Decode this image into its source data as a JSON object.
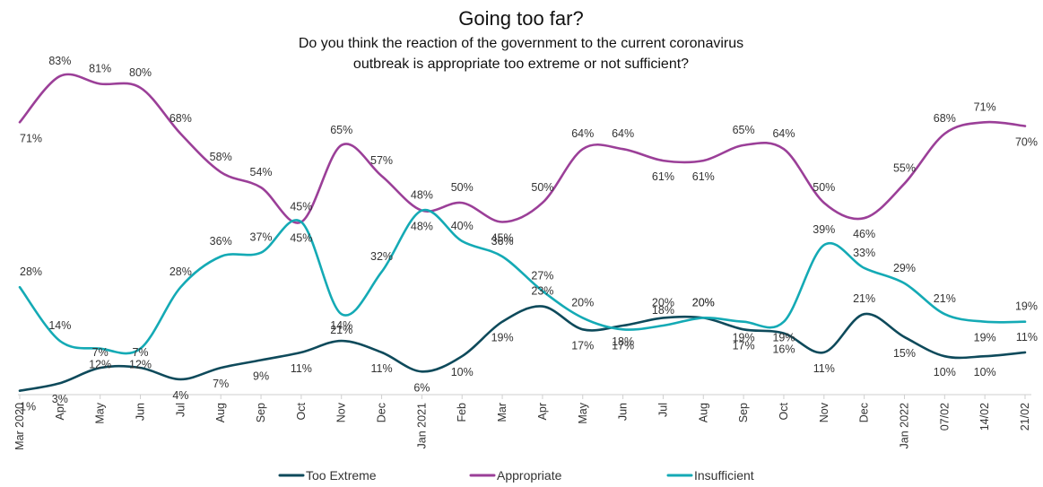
{
  "chart_data": {
    "type": "line",
    "title": "Going too far?",
    "subtitle_lines": [
      "Do you think the reaction of the government to the current coronavirus",
      "outbreak is appropriate too extreme or not sufficient?"
    ],
    "categories": [
      "Mar 2020",
      "Apr",
      "May",
      "Jun",
      "Jul",
      "Aug",
      "Sep",
      "Oct",
      "Nov",
      "Dec",
      "Jan 2021",
      "Feb",
      "Mar",
      "Apr",
      "May",
      "Jun",
      "Jul",
      "Aug",
      "Sep",
      "Oct",
      "Nov",
      "Dec",
      "Jan 2022",
      "07/02",
      "14/02",
      "21/02"
    ],
    "ylim": [
      0,
      90
    ],
    "grid": false,
    "legend_position": "bottom",
    "series": [
      {
        "name": "Too Extreme",
        "color": "#0e4a5b",
        "values": [
          1,
          3,
          7,
          7,
          4,
          7,
          9,
          11,
          14,
          11,
          6,
          10,
          19,
          23,
          17,
          18,
          20,
          20,
          17,
          16,
          11,
          21,
          15,
          10,
          10,
          11
        ],
        "labels": [
          "1%",
          "3%",
          "7%",
          "7%",
          "4%",
          "7%",
          "9%",
          "11%",
          "14%",
          "11%",
          "6%",
          "10%",
          "19%",
          "23%",
          "17%",
          "18%",
          "20%",
          "20%",
          "17%",
          "16%",
          "11%",
          "21%",
          "15%",
          "10%",
          "10%",
          "11%"
        ]
      },
      {
        "name": "Appropriate",
        "color": "#9b3f98",
        "values": [
          71,
          83,
          81,
          80,
          68,
          58,
          54,
          45,
          65,
          57,
          48,
          50,
          45,
          50,
          64,
          64,
          61,
          61,
          65,
          64,
          50,
          46,
          55,
          68,
          71,
          70
        ],
        "labels": [
          "71%",
          "83%",
          "81%",
          "80%",
          "68%",
          "58%",
          "54%",
          "45%",
          "65%",
          "57%",
          "48%",
          "50%",
          "45%",
          "50%",
          "64%",
          "64%",
          "61%",
          "61%",
          "65%",
          "64%",
          "50%",
          "46%",
          "55%",
          "68%",
          "71%",
          "70%"
        ]
      },
      {
        "name": "Insufficient",
        "color": "#14aab5",
        "values": [
          28,
          14,
          12,
          12,
          28,
          36,
          37,
          45,
          21,
          32,
          48,
          40,
          36,
          27,
          20,
          17,
          18,
          20,
          19,
          19,
          39,
          33,
          29,
          21,
          19,
          19
        ],
        "labels": [
          "28%",
          "14%",
          "12%",
          "12%",
          "28%",
          "36%",
          "37%",
          "45%",
          "21%",
          "32%",
          "48%",
          "40%",
          "36%",
          "27%",
          "20%",
          "17%",
          "18%",
          "20%",
          "19%",
          "19%",
          "39%",
          "33%",
          "29%",
          "21%",
          "19%",
          "19%"
        ]
      }
    ]
  }
}
